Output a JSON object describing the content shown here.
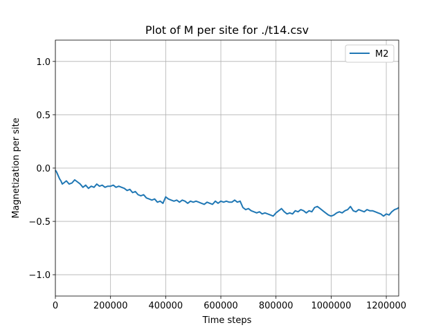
{
  "chart_data": {
    "type": "line",
    "title": "Plot of M per site for ./t14.csv",
    "xlabel": "Time steps",
    "ylabel": "Magnetization per site",
    "xlim": [
      0,
      1245000
    ],
    "ylim": [
      -1.2,
      1.2
    ],
    "xticks": [
      0,
      200000,
      400000,
      600000,
      800000,
      1000000,
      1200000
    ],
    "xtick_labels": [
      "0",
      "200000",
      "400000",
      "600000",
      "800000",
      "1000000",
      "1200000"
    ],
    "yticks": [
      -1.0,
      -0.5,
      0.0,
      0.5,
      1.0
    ],
    "ytick_labels": [
      "−1.0",
      "−0.5",
      "0.0",
      "0.5",
      "1.0"
    ],
    "grid": true,
    "legend_position": "upper right",
    "series": [
      {
        "name": "M2",
        "color": "#1f77b4",
        "x": [
          0,
          5000,
          10000,
          15000,
          20000,
          25000,
          30000,
          40000,
          50000,
          60000,
          70000,
          80000,
          90000,
          100000,
          110000,
          120000,
          130000,
          140000,
          150000,
          160000,
          170000,
          180000,
          190000,
          200000,
          210000,
          220000,
          230000,
          240000,
          250000,
          260000,
          270000,
          280000,
          290000,
          300000,
          310000,
          320000,
          330000,
          340000,
          350000,
          360000,
          370000,
          380000,
          390000,
          400000,
          410000,
          420000,
          430000,
          440000,
          450000,
          460000,
          470000,
          480000,
          490000,
          500000,
          510000,
          520000,
          530000,
          540000,
          550000,
          560000,
          570000,
          580000,
          590000,
          600000,
          610000,
          620000,
          630000,
          640000,
          650000,
          660000,
          670000,
          680000,
          690000,
          700000,
          710000,
          720000,
          730000,
          740000,
          750000,
          760000,
          770000,
          780000,
          790000,
          800000,
          810000,
          820000,
          830000,
          840000,
          850000,
          860000,
          870000,
          880000,
          890000,
          900000,
          910000,
          920000,
          930000,
          940000,
          950000,
          960000,
          970000,
          980000,
          990000,
          1000000,
          1010000,
          1020000,
          1030000,
          1040000,
          1050000,
          1060000,
          1070000,
          1080000,
          1090000,
          1100000,
          1110000,
          1120000,
          1130000,
          1140000,
          1150000,
          1160000,
          1170000,
          1180000,
          1190000,
          1200000,
          1210000,
          1220000,
          1230000,
          1240000,
          1245000
        ],
        "y": [
          -0.02,
          -0.04,
          -0.07,
          -0.1,
          -0.12,
          -0.15,
          -0.14,
          -0.12,
          -0.15,
          -0.14,
          -0.11,
          -0.13,
          -0.15,
          -0.18,
          -0.16,
          -0.19,
          -0.17,
          -0.18,
          -0.15,
          -0.17,
          -0.16,
          -0.18,
          -0.17,
          -0.17,
          -0.16,
          -0.18,
          -0.17,
          -0.18,
          -0.19,
          -0.21,
          -0.2,
          -0.23,
          -0.22,
          -0.25,
          -0.26,
          -0.25,
          -0.28,
          -0.29,
          -0.3,
          -0.29,
          -0.32,
          -0.31,
          -0.33,
          -0.27,
          -0.29,
          -0.3,
          -0.31,
          -0.3,
          -0.32,
          -0.3,
          -0.31,
          -0.33,
          -0.31,
          -0.32,
          -0.31,
          -0.32,
          -0.33,
          -0.34,
          -0.32,
          -0.33,
          -0.34,
          -0.31,
          -0.33,
          -0.31,
          -0.32,
          -0.31,
          -0.32,
          -0.32,
          -0.3,
          -0.32,
          -0.31,
          -0.37,
          -0.39,
          -0.38,
          -0.4,
          -0.41,
          -0.42,
          -0.41,
          -0.43,
          -0.42,
          -0.43,
          -0.44,
          -0.45,
          -0.42,
          -0.4,
          -0.38,
          -0.41,
          -0.43,
          -0.42,
          -0.43,
          -0.4,
          -0.41,
          -0.39,
          -0.4,
          -0.42,
          -0.4,
          -0.41,
          -0.37,
          -0.36,
          -0.38,
          -0.4,
          -0.42,
          -0.44,
          -0.45,
          -0.44,
          -0.42,
          -0.41,
          -0.42,
          -0.4,
          -0.39,
          -0.36,
          -0.4,
          -0.41,
          -0.39,
          -0.4,
          -0.41,
          -0.39,
          -0.4,
          -0.4,
          -0.41,
          -0.42,
          -0.43,
          -0.45,
          -0.43,
          -0.44,
          -0.41,
          -0.39,
          -0.38,
          -0.37
        ]
      }
    ]
  }
}
